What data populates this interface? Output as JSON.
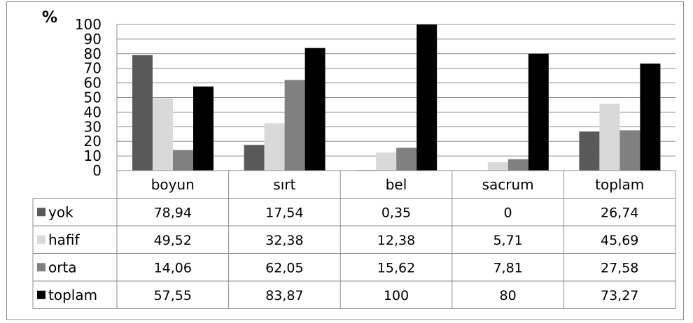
{
  "chart_data": {
    "type": "bar",
    "ylabel": "%",
    "ylim": [
      0,
      100
    ],
    "yticks": [
      0,
      10,
      20,
      30,
      40,
      50,
      60,
      70,
      80,
      90,
      100
    ],
    "grid": true,
    "categories": [
      "boyun",
      "sırt",
      "bel",
      "sacrum",
      "toplam"
    ],
    "series": [
      {
        "name": "yok",
        "color": "#595959",
        "values": [
          78.94,
          17.54,
          0.35,
          0,
          26.74
        ],
        "labels": [
          "78,94",
          "17,54",
          "0,35",
          "0",
          "26,74"
        ]
      },
      {
        "name": "hafif",
        "color": "#d9d9d9",
        "values": [
          49.52,
          32.38,
          12.38,
          5.71,
          45.69
        ],
        "labels": [
          "49,52",
          "32,38",
          "12,38",
          "5,71",
          "45,69"
        ]
      },
      {
        "name": "orta",
        "color": "#808080",
        "values": [
          14.06,
          62.05,
          15.62,
          7.81,
          27.58
        ],
        "labels": [
          "14,06",
          "62,05",
          "15,62",
          "7,81",
          "27,58"
        ]
      },
      {
        "name": "toplam",
        "color": "#000000",
        "values": [
          57.55,
          83.87,
          100,
          80,
          73.27
        ],
        "labels": [
          "57,55",
          "83,87",
          "100",
          "80",
          "73,27"
        ]
      }
    ],
    "legend_position": "data-table"
  }
}
